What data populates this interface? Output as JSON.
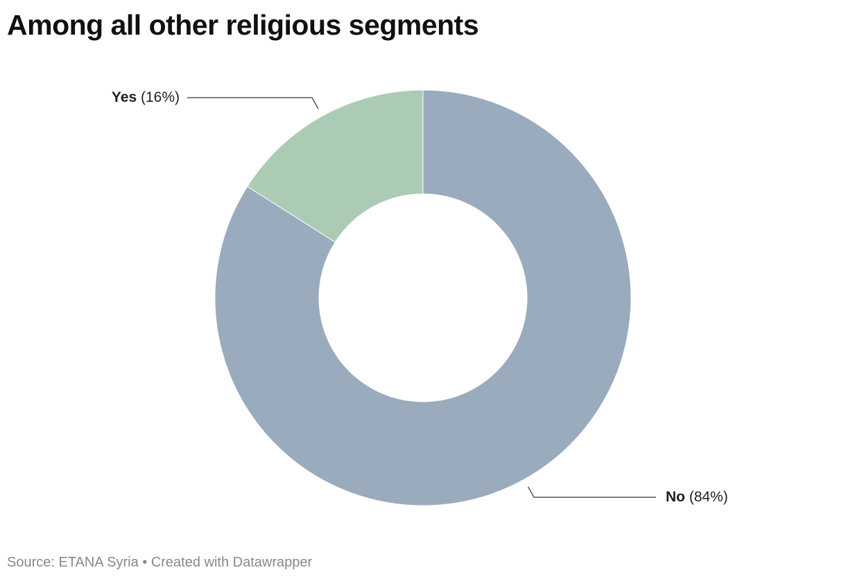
{
  "chart_data": {
    "type": "pie",
    "variant": "donut",
    "title": "Among all other religious segments",
    "slices": [
      {
        "label": "No",
        "value": 84,
        "value_text": "(84%)",
        "color": "#9aabbd"
      },
      {
        "label": "Yes",
        "value": 16,
        "value_text": "(16%)",
        "color": "#abcbb4"
      }
    ],
    "start_angle_deg": 0,
    "direction": "clockwise",
    "label_placement": "outside-with-leader-lines"
  },
  "footer": {
    "source": "Source: ETANA Syria",
    "separator": " • ",
    "credit": "Created with Datawrapper"
  },
  "colors": {
    "title": "#111111",
    "label_text": "#1f1f1f",
    "leader_line": "#555555",
    "footer_text": "#888888",
    "slice_border": "#ffffff"
  }
}
